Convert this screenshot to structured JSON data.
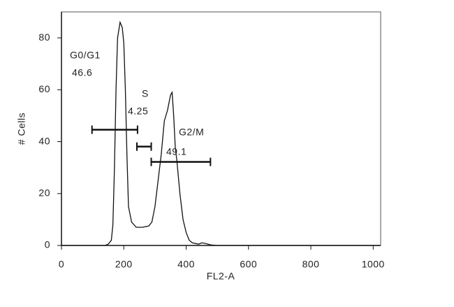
{
  "chart_data": {
    "type": "line",
    "x_label": "FL2-A",
    "y_label": "# Cells",
    "xlim": [
      0,
      1024
    ],
    "ylim": [
      0,
      90
    ],
    "xticks": [
      0,
      200,
      400,
      600,
      800,
      1000
    ],
    "yticks": [
      0,
      20,
      40,
      60,
      80
    ],
    "series": [
      {
        "color": "#111111",
        "x": [
          0,
          140,
          150,
          160,
          165,
          170,
          175,
          180,
          188,
          195,
          200,
          205,
          210,
          215,
          225,
          240,
          260,
          280,
          290,
          300,
          310,
          320,
          330,
          340,
          350,
          355,
          360,
          365,
          370,
          380,
          390,
          400,
          410,
          420,
          440,
          450,
          460,
          480,
          500,
          1020
        ],
        "values": [
          0,
          0,
          0.5,
          2,
          8,
          30,
          60,
          80,
          86,
          84,
          78,
          60,
          35,
          15,
          9,
          7,
          7,
          7.5,
          9,
          15,
          25,
          35,
          48,
          52,
          58,
          59,
          50,
          38,
          33,
          20,
          10,
          5,
          2,
          1,
          0.5,
          1,
          0.8,
          0.2,
          0,
          0
        ]
      }
    ],
    "gates": [
      {
        "name": "G0/G1",
        "percent": 46.6,
        "range": [
          98,
          244
        ],
        "y": 44.6
      },
      {
        "name": "S",
        "percent": 4.25,
        "range": [
          242,
          288
        ],
        "y": 38.1
      },
      {
        "name": "G2/M",
        "percent": 49.1,
        "range": [
          288,
          478
        ],
        "y": 32.2
      }
    ]
  }
}
